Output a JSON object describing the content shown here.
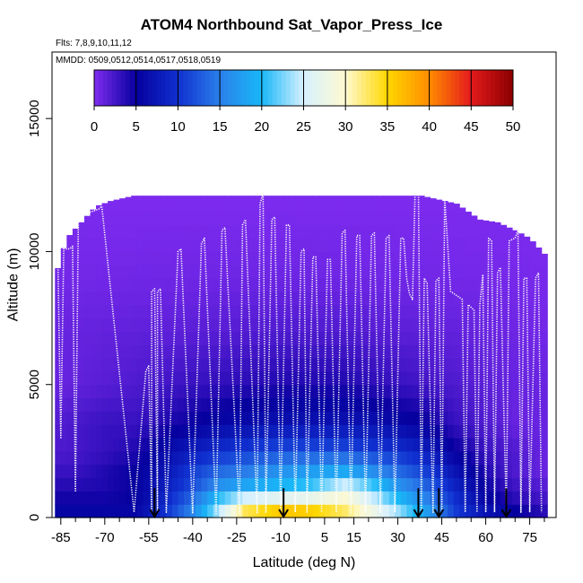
{
  "chart_data": {
    "type": "heatmap",
    "title": "ATOM4 Northbound Sat_Vapor_Press_Ice",
    "flights_label": "Flts: 7,8,9,10,11,12",
    "dates_label": "MMDD: 0509,0512,0514,0517,0518,0519",
    "xlabel": "Latitude (deg N)",
    "ylabel": "Altitude (m)",
    "xlim": [
      -88,
      84
    ],
    "ylim": [
      0,
      17500
    ],
    "x_ticks": [
      -85,
      -70,
      -55,
      -40,
      -25,
      -10,
      5,
      15,
      30,
      45,
      60,
      75
    ],
    "x_tick_labels": [
      "-85",
      "-70",
      "-55",
      "-40",
      "-25",
      "-10",
      "5",
      "15",
      "30",
      "45",
      "60",
      "75"
    ],
    "y_ticks": [
      0,
      5000,
      10000,
      15000
    ],
    "y_tick_labels": [
      "0",
      "5000",
      "10000",
      "15000"
    ],
    "colorbar": {
      "ticks": [
        0,
        5,
        10,
        15,
        20,
        25,
        30,
        35,
        40,
        45,
        50
      ],
      "tick_labels": [
        "0",
        "5",
        "10",
        "15",
        "20",
        "25",
        "30",
        "35",
        "40",
        "45",
        "50"
      ],
      "colors": [
        "#7f2cf0",
        "#06009e",
        "#1030d0",
        "#2a80ea",
        "#18b8f8",
        "#d6f0ff",
        "#fffad0",
        "#ffd700",
        "#ff8c00",
        "#e41a1c",
        "#8b0000"
      ]
    },
    "legend_placement": "top",
    "grid": false,
    "profile_arrows_latitude": [
      -53,
      -9,
      37,
      44,
      67
    ],
    "coverage": {
      "lat_min": -87,
      "lat_max": 81,
      "top_altitude_by_lat": [
        [
          -87,
          9000
        ],
        [
          -83,
          10500
        ],
        [
          -73,
          11700
        ],
        [
          -68,
          11900
        ],
        [
          -60,
          12100
        ],
        [
          -25,
          12100
        ],
        [
          10,
          12100
        ],
        [
          28,
          12100
        ],
        [
          38,
          12100
        ],
        [
          50,
          11800
        ],
        [
          58,
          11200
        ],
        [
          64,
          11100
        ],
        [
          70,
          10800
        ],
        [
          75,
          10500
        ],
        [
          81,
          9800
        ]
      ]
    },
    "value_profile": [
      {
        "alt": 0,
        "values": [
          [
            -60,
            6
          ],
          [
            -50,
            10
          ],
          [
            -40,
            16
          ],
          [
            -30,
            26
          ],
          [
            -22,
            36
          ],
          [
            -10,
            40
          ],
          [
            0,
            39
          ],
          [
            12,
            34
          ],
          [
            20,
            30
          ],
          [
            30,
            25
          ],
          [
            40,
            19
          ],
          [
            50,
            11
          ],
          [
            60,
            8
          ],
          [
            70,
            6
          ],
          [
            80,
            4
          ]
        ]
      },
      {
        "alt": 500,
        "values": [
          [
            -60,
            5
          ],
          [
            -50,
            9
          ],
          [
            -40,
            15
          ],
          [
            -30,
            24
          ],
          [
            -22,
            30
          ],
          [
            -10,
            32
          ],
          [
            0,
            32
          ],
          [
            12,
            31
          ],
          [
            20,
            27
          ],
          [
            30,
            22
          ],
          [
            40,
            16
          ],
          [
            50,
            10
          ],
          [
            60,
            6
          ],
          [
            70,
            4
          ],
          [
            80,
            3
          ]
        ]
      },
      {
        "alt": 1000,
        "values": [
          [
            -70,
            4
          ],
          [
            -60,
            5
          ],
          [
            -50,
            8
          ],
          [
            -40,
            12
          ],
          [
            -30,
            18
          ],
          [
            -22,
            20
          ],
          [
            -10,
            21
          ],
          [
            0,
            22
          ],
          [
            12,
            28
          ],
          [
            20,
            24
          ],
          [
            30,
            18
          ],
          [
            40,
            14
          ],
          [
            50,
            9
          ],
          [
            60,
            5
          ],
          [
            70,
            3
          ],
          [
            80,
            2
          ]
        ]
      },
      {
        "alt": 1700,
        "values": [
          [
            -80,
            3
          ],
          [
            -70,
            4
          ],
          [
            -60,
            5
          ],
          [
            -50,
            7
          ],
          [
            -40,
            11
          ],
          [
            -30,
            14
          ],
          [
            -22,
            15
          ],
          [
            -10,
            17
          ],
          [
            0,
            18
          ],
          [
            12,
            19
          ],
          [
            20,
            17
          ],
          [
            30,
            14
          ],
          [
            40,
            11
          ],
          [
            50,
            7
          ],
          [
            60,
            4
          ],
          [
            70,
            2
          ],
          [
            80,
            1
          ]
        ]
      },
      {
        "alt": 2500,
        "values": [
          [
            -85,
            2
          ],
          [
            -70,
            3
          ],
          [
            -60,
            4
          ],
          [
            -50,
            6
          ],
          [
            -40,
            8
          ],
          [
            -30,
            10
          ],
          [
            -10,
            12
          ],
          [
            0,
            12
          ],
          [
            12,
            12
          ],
          [
            20,
            11
          ],
          [
            30,
            10
          ],
          [
            40,
            8
          ],
          [
            50,
            5
          ],
          [
            60,
            3
          ],
          [
            70,
            2
          ],
          [
            80,
            1
          ]
        ]
      },
      {
        "alt": 3500,
        "values": [
          [
            -85,
            2
          ],
          [
            -70,
            3
          ],
          [
            -60,
            3
          ],
          [
            -50,
            4
          ],
          [
            -40,
            5
          ],
          [
            -30,
            6
          ],
          [
            -10,
            7
          ],
          [
            0,
            7
          ],
          [
            12,
            7
          ],
          [
            20,
            7
          ],
          [
            30,
            6
          ],
          [
            40,
            5
          ],
          [
            50,
            3
          ],
          [
            60,
            2
          ],
          [
            70,
            1
          ],
          [
            80,
            1
          ]
        ]
      },
      {
        "alt": 5000,
        "values": [
          [
            -85,
            1
          ],
          [
            -60,
            2
          ],
          [
            -40,
            3
          ],
          [
            -10,
            4
          ],
          [
            12,
            4
          ],
          [
            30,
            3
          ],
          [
            50,
            2
          ],
          [
            70,
            1
          ],
          [
            80,
            1
          ]
        ]
      },
      {
        "alt": 7000,
        "values": [
          [
            -85,
            1
          ],
          [
            -40,
            1.5
          ],
          [
            -10,
            2
          ],
          [
            12,
            2
          ],
          [
            30,
            1.5
          ],
          [
            60,
            1
          ],
          [
            80,
            0.5
          ]
        ]
      },
      {
        "alt": 9000,
        "values": [
          [
            -85,
            0.5
          ],
          [
            -10,
            0.8
          ],
          [
            30,
            0.6
          ],
          [
            80,
            0.3
          ]
        ]
      },
      {
        "alt": 12000,
        "values": [
          [
            -85,
            0.1
          ],
          [
            80,
            0.1
          ]
        ]
      }
    ],
    "flight_track": [
      [
        -87,
        10000
      ],
      [
        -86,
        9800
      ],
      [
        -85,
        3000
      ],
      [
        -84,
        10100
      ],
      [
        -82,
        10100
      ],
      [
        -81,
        10200
      ],
      [
        -80,
        1000
      ],
      [
        -79,
        11300
      ],
      [
        -77,
        11400
      ],
      [
        -72,
        11600
      ],
      [
        -71,
        11700
      ],
      [
        -60,
        200
      ],
      [
        -56,
        5500
      ],
      [
        -55,
        5700
      ],
      [
        -54,
        200
      ],
      [
        -54,
        8500
      ],
      [
        -53,
        8600
      ],
      [
        -52,
        200
      ],
      [
        -52,
        8500
      ],
      [
        -51,
        8600
      ],
      [
        -49,
        200
      ],
      [
        -45,
        10000
      ],
      [
        -44,
        10100
      ],
      [
        -40,
        150
      ],
      [
        -37,
        10300
      ],
      [
        -36,
        10500
      ],
      [
        -32,
        150
      ],
      [
        -30,
        10800
      ],
      [
        -29,
        10900
      ],
      [
        -24,
        150
      ],
      [
        -23,
        11000
      ],
      [
        -22,
        11200
      ],
      [
        -18,
        150
      ],
      [
        -17,
        11800
      ],
      [
        -16,
        12200
      ],
      [
        -15,
        200
      ],
      [
        -13,
        11200
      ],
      [
        -12,
        11300
      ],
      [
        -10,
        200
      ],
      [
        -8,
        11000
      ],
      [
        -7,
        11000
      ],
      [
        -5,
        200
      ],
      [
        -3,
        10000
      ],
      [
        -2,
        10100
      ],
      [
        -1,
        200
      ],
      [
        1,
        9800
      ],
      [
        2,
        9800
      ],
      [
        4,
        200
      ],
      [
        6,
        9700
      ],
      [
        7,
        9700
      ],
      [
        9,
        200
      ],
      [
        11,
        10700
      ],
      [
        12,
        10800
      ],
      [
        14,
        200
      ],
      [
        16,
        10600
      ],
      [
        17,
        10600
      ],
      [
        19,
        200
      ],
      [
        21,
        10600
      ],
      [
        22,
        10700
      ],
      [
        24,
        200
      ],
      [
        26,
        10500
      ],
      [
        27,
        10600
      ],
      [
        29,
        200
      ],
      [
        31,
        10500
      ],
      [
        32,
        10500
      ],
      [
        33,
        9000
      ],
      [
        34,
        8400
      ],
      [
        35,
        8200
      ],
      [
        36,
        12800
      ],
      [
        37,
        12700
      ],
      [
        38,
        200
      ],
      [
        39,
        9000
      ],
      [
        40,
        8800
      ],
      [
        42,
        200
      ],
      [
        43,
        8900
      ],
      [
        44,
        9000
      ],
      [
        45,
        200
      ],
      [
        46,
        12000
      ],
      [
        48,
        8500
      ],
      [
        52,
        8200
      ],
      [
        53,
        200
      ],
      [
        54,
        8000
      ],
      [
        56,
        7800
      ],
      [
        57,
        200
      ],
      [
        58,
        8000
      ],
      [
        59,
        9100
      ],
      [
        60,
        200
      ],
      [
        61,
        10500
      ],
      [
        62,
        10400
      ],
      [
        63,
        200
      ],
      [
        64,
        9200
      ],
      [
        65,
        9400
      ],
      [
        67,
        200
      ],
      [
        68,
        10400
      ],
      [
        70,
        10500
      ],
      [
        71,
        10800
      ],
      [
        72,
        200
      ],
      [
        73,
        9000
      ],
      [
        74,
        9000
      ],
      [
        75,
        200
      ],
      [
        77,
        9000
      ],
      [
        78,
        9200
      ],
      [
        79,
        200
      ]
    ]
  }
}
